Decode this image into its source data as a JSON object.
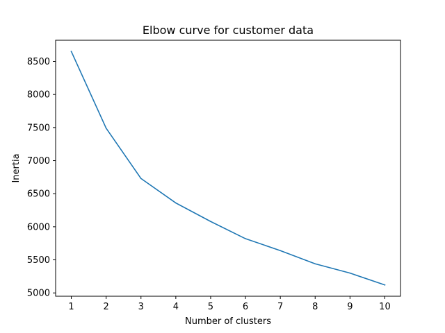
{
  "chart_data": {
    "type": "line",
    "title": "Elbow curve for customer data",
    "xlabel": "Number of clusters",
    "ylabel": "Inertia",
    "x": [
      1,
      2,
      3,
      4,
      5,
      6,
      7,
      8,
      9,
      10
    ],
    "series": [
      {
        "values": [
          8650,
          7490,
          6730,
          6360,
          6080,
          5820,
          5640,
          5440,
          5300,
          5120
        ],
        "color": "#1f77b4"
      }
    ],
    "xlim": [
      0.55,
      10.45
    ],
    "ylim": [
      4950,
      8820
    ],
    "xticks": [
      1,
      2,
      3,
      4,
      5,
      6,
      7,
      8,
      9,
      10
    ],
    "yticks": [
      5000,
      5500,
      6000,
      6500,
      7000,
      7500,
      8000,
      8500
    ],
    "grid": false,
    "legend": false
  }
}
